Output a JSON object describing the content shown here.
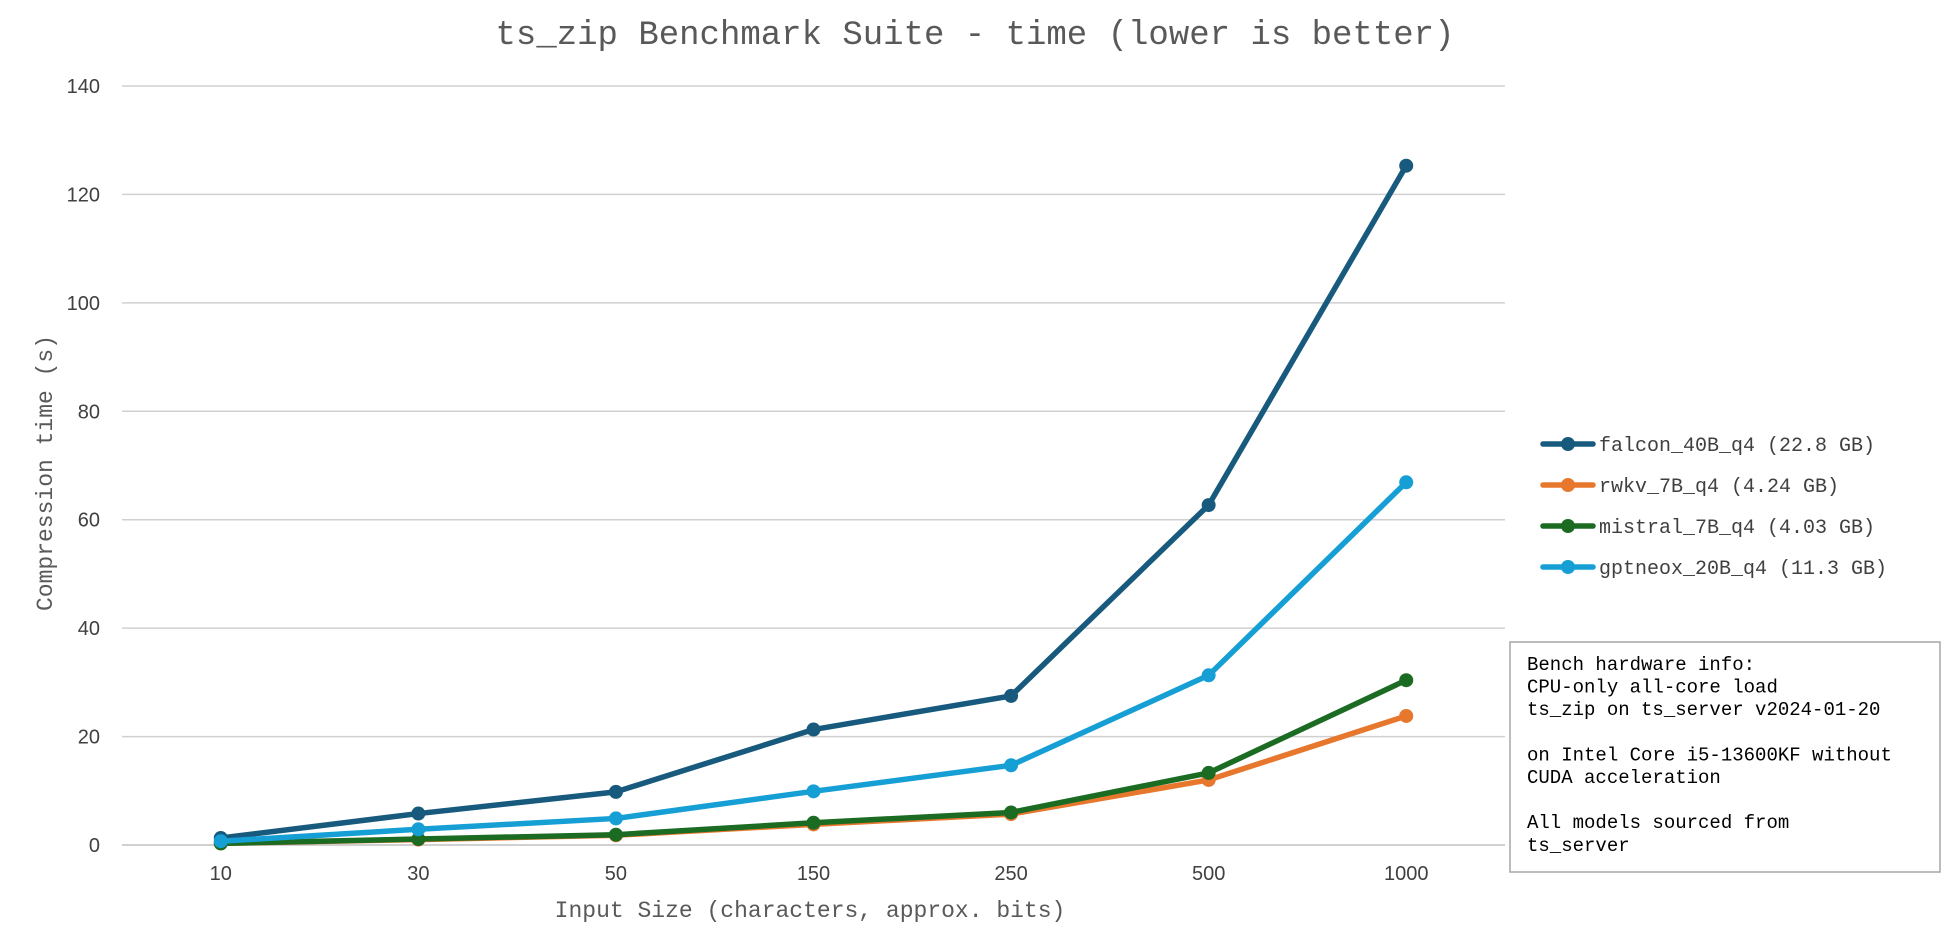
{
  "chart_data": {
    "type": "line",
    "title": "ts_zip Benchmark Suite - time (lower is better)",
    "xlabel": "Input Size (characters, approx. bits)",
    "ylabel": "Compression time (s)",
    "categories": [
      "10",
      "30",
      "50",
      "150",
      "250",
      "500",
      "1000"
    ],
    "ylim": [
      0,
      140
    ],
    "yticks": [
      "0",
      "20",
      "40",
      "60",
      "80",
      "100",
      "120",
      "140"
    ],
    "grid": true,
    "legend_position": "right",
    "series": [
      {
        "name": "falcon_40B_q4 (22.8 GB)",
        "color": "#175A7D",
        "values": [
          1.3,
          5.8,
          9.8,
          21.3,
          27.5,
          62.7,
          125.3
        ]
      },
      {
        "name": "rwkv_7B_q4 (4.24 GB)",
        "color": "#E8772E",
        "values": [
          0.3,
          1.0,
          1.8,
          3.8,
          5.7,
          12.0,
          23.8
        ]
      },
      {
        "name": "mistral_7B_q4 (4.03 GB)",
        "color": "#1B6B22",
        "values": [
          0.3,
          1.1,
          1.9,
          4.1,
          6.0,
          13.3,
          30.4
        ]
      },
      {
        "name": "gptneox_20B_q4 (11.3 GB)",
        "color": "#169FD5",
        "values": [
          0.7,
          2.9,
          4.9,
          9.9,
          14.7,
          31.3,
          66.9
        ]
      }
    ],
    "annotation": {
      "lines": [
        "Bench hardware info:",
        "CPU-only all-core load",
        "ts_zip on ts_server v2024-01-20",
        "",
        "on Intel Core i5-13600KF without",
        "CUDA acceleration",
        "",
        "All models sourced from",
        "ts_server"
      ]
    }
  }
}
